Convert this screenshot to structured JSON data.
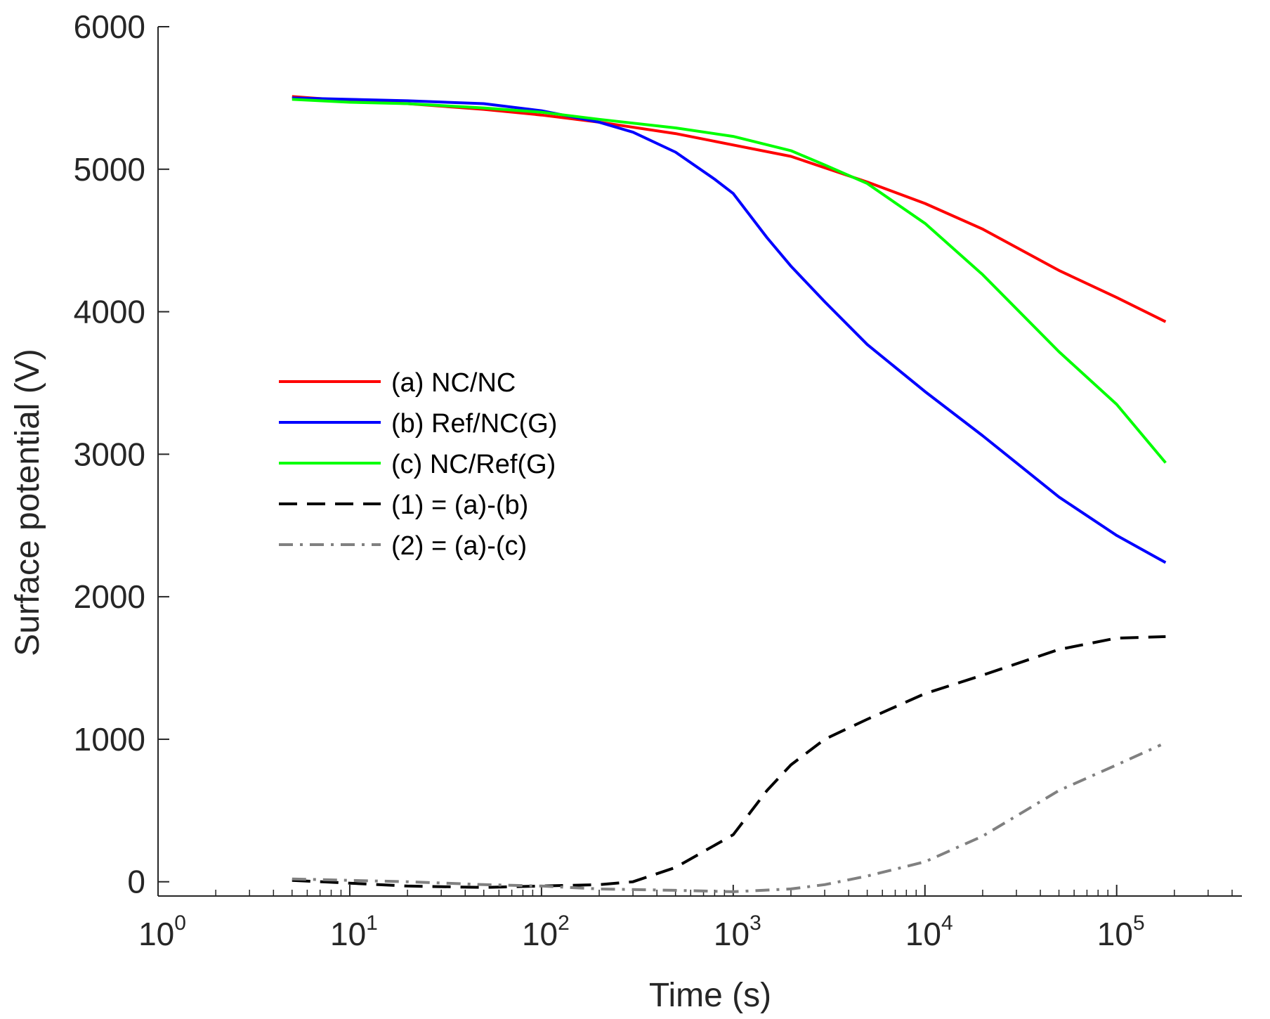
{
  "chart_data": {
    "type": "line",
    "title": "",
    "xlabel": "Time (s)",
    "ylabel": "Surface potential (V)",
    "xscale": "log",
    "xlim": [
      1,
      450000
    ],
    "ylim": [
      -100,
      6000
    ],
    "x_ticks": [
      {
        "value": 1,
        "base": "10",
        "exp": "0"
      },
      {
        "value": 10,
        "base": "10",
        "exp": "1"
      },
      {
        "value": 100,
        "base": "10",
        "exp": "2"
      },
      {
        "value": 1000,
        "base": "10",
        "exp": "3"
      },
      {
        "value": 10000,
        "base": "10",
        "exp": "4"
      },
      {
        "value": 100000,
        "base": "10",
        "exp": "5"
      }
    ],
    "y_ticks": [
      0,
      1000,
      2000,
      3000,
      4000,
      5000,
      6000
    ],
    "y_tick_labels": [
      "0",
      "1000",
      "2000",
      "3000",
      "4000",
      "5000",
      "6000"
    ],
    "grid": false,
    "legend_position": "center-left",
    "series": [
      {
        "name": "(a) NC/NC",
        "color": "#ff0000",
        "style": "solid",
        "x": [
          5,
          10,
          20,
          50,
          100,
          200,
          500,
          1000,
          2000,
          5000,
          10000,
          20000,
          50000,
          100000,
          180000
        ],
        "y": [
          5510,
          5480,
          5460,
          5420,
          5380,
          5330,
          5250,
          5170,
          5090,
          4910,
          4760,
          4580,
          4290,
          4100,
          3930
        ]
      },
      {
        "name": "(b) Ref/NC(G)",
        "color": "#0000ff",
        "style": "solid",
        "x": [
          5,
          10,
          20,
          50,
          100,
          200,
          300,
          500,
          800,
          1000,
          1500,
          2000,
          3000,
          5000,
          10000,
          20000,
          50000,
          100000,
          180000
        ],
        "y": [
          5500,
          5490,
          5480,
          5460,
          5410,
          5330,
          5260,
          5120,
          4930,
          4830,
          4520,
          4320,
          4070,
          3770,
          3440,
          3130,
          2700,
          2430,
          2240
        ]
      },
      {
        "name": "(c) NC/Ref(G)",
        "color": "#00ff00",
        "style": "solid",
        "x": [
          5,
          10,
          20,
          50,
          100,
          200,
          500,
          1000,
          2000,
          3000,
          5000,
          10000,
          20000,
          50000,
          100000,
          180000
        ],
        "y": [
          5490,
          5470,
          5460,
          5430,
          5400,
          5350,
          5290,
          5230,
          5130,
          5030,
          4900,
          4620,
          4260,
          3720,
          3350,
          2940
        ]
      },
      {
        "name": "(1) = (a)-(b)",
        "color": "#000000",
        "style": "dashed",
        "x": [
          5,
          10,
          20,
          50,
          100,
          200,
          300,
          500,
          1000,
          1500,
          2000,
          3000,
          5000,
          10000,
          20000,
          50000,
          100000,
          180000
        ],
        "y": [
          10,
          -10,
          -30,
          -40,
          -30,
          -20,
          0,
          100,
          330,
          640,
          820,
          1000,
          1140,
          1320,
          1450,
          1630,
          1710,
          1720
        ]
      },
      {
        "name": "(2) = (a)-(c)",
        "color": "#808080",
        "style": "dashdot",
        "x": [
          5,
          10,
          20,
          50,
          100,
          200,
          500,
          1000,
          2000,
          3000,
          5000,
          10000,
          20000,
          50000,
          100000,
          170000
        ],
        "y": [
          20,
          10,
          0,
          -20,
          -30,
          -50,
          -60,
          -70,
          -50,
          -20,
          40,
          140,
          320,
          640,
          820,
          960
        ]
      }
    ]
  }
}
